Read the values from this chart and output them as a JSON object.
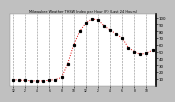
{
  "title": "Milwaukee Weather THSW Index per Hour (F) (Last 24 Hours)",
  "background_color": "#c0c0c0",
  "plot_bg_color": "#ffffff",
  "line_color": "#dd0000",
  "marker_color": "#000000",
  "grid_color": "#888888",
  "text_color": "#000000",
  "title_color": "#000000",
  "ylim": [
    0,
    105
  ],
  "yticks": [
    10,
    20,
    30,
    40,
    50,
    60,
    70,
    80,
    90,
    100
  ],
  "hours": [
    0,
    1,
    2,
    3,
    4,
    5,
    6,
    7,
    8,
    9,
    10,
    11,
    12,
    13,
    14,
    15,
    16,
    17,
    18,
    19,
    20,
    21,
    22,
    23
  ],
  "values": [
    9,
    8,
    8,
    7,
    7,
    7,
    8,
    9,
    12,
    32,
    60,
    80,
    92,
    98,
    97,
    88,
    82,
    76,
    70,
    56,
    50,
    46,
    48,
    52
  ],
  "grid_hours": [
    0,
    2,
    4,
    6,
    8,
    10,
    12,
    14,
    16,
    18,
    20,
    22
  ],
  "xlabel_ticks": [
    0,
    2,
    4,
    6,
    8,
    10,
    12,
    14,
    16,
    18,
    20,
    22
  ],
  "xlabel_labels": [
    "12",
    "2",
    "4",
    "6",
    "8",
    "10",
    "12",
    "2",
    "4",
    "6",
    "8",
    "10"
  ]
}
